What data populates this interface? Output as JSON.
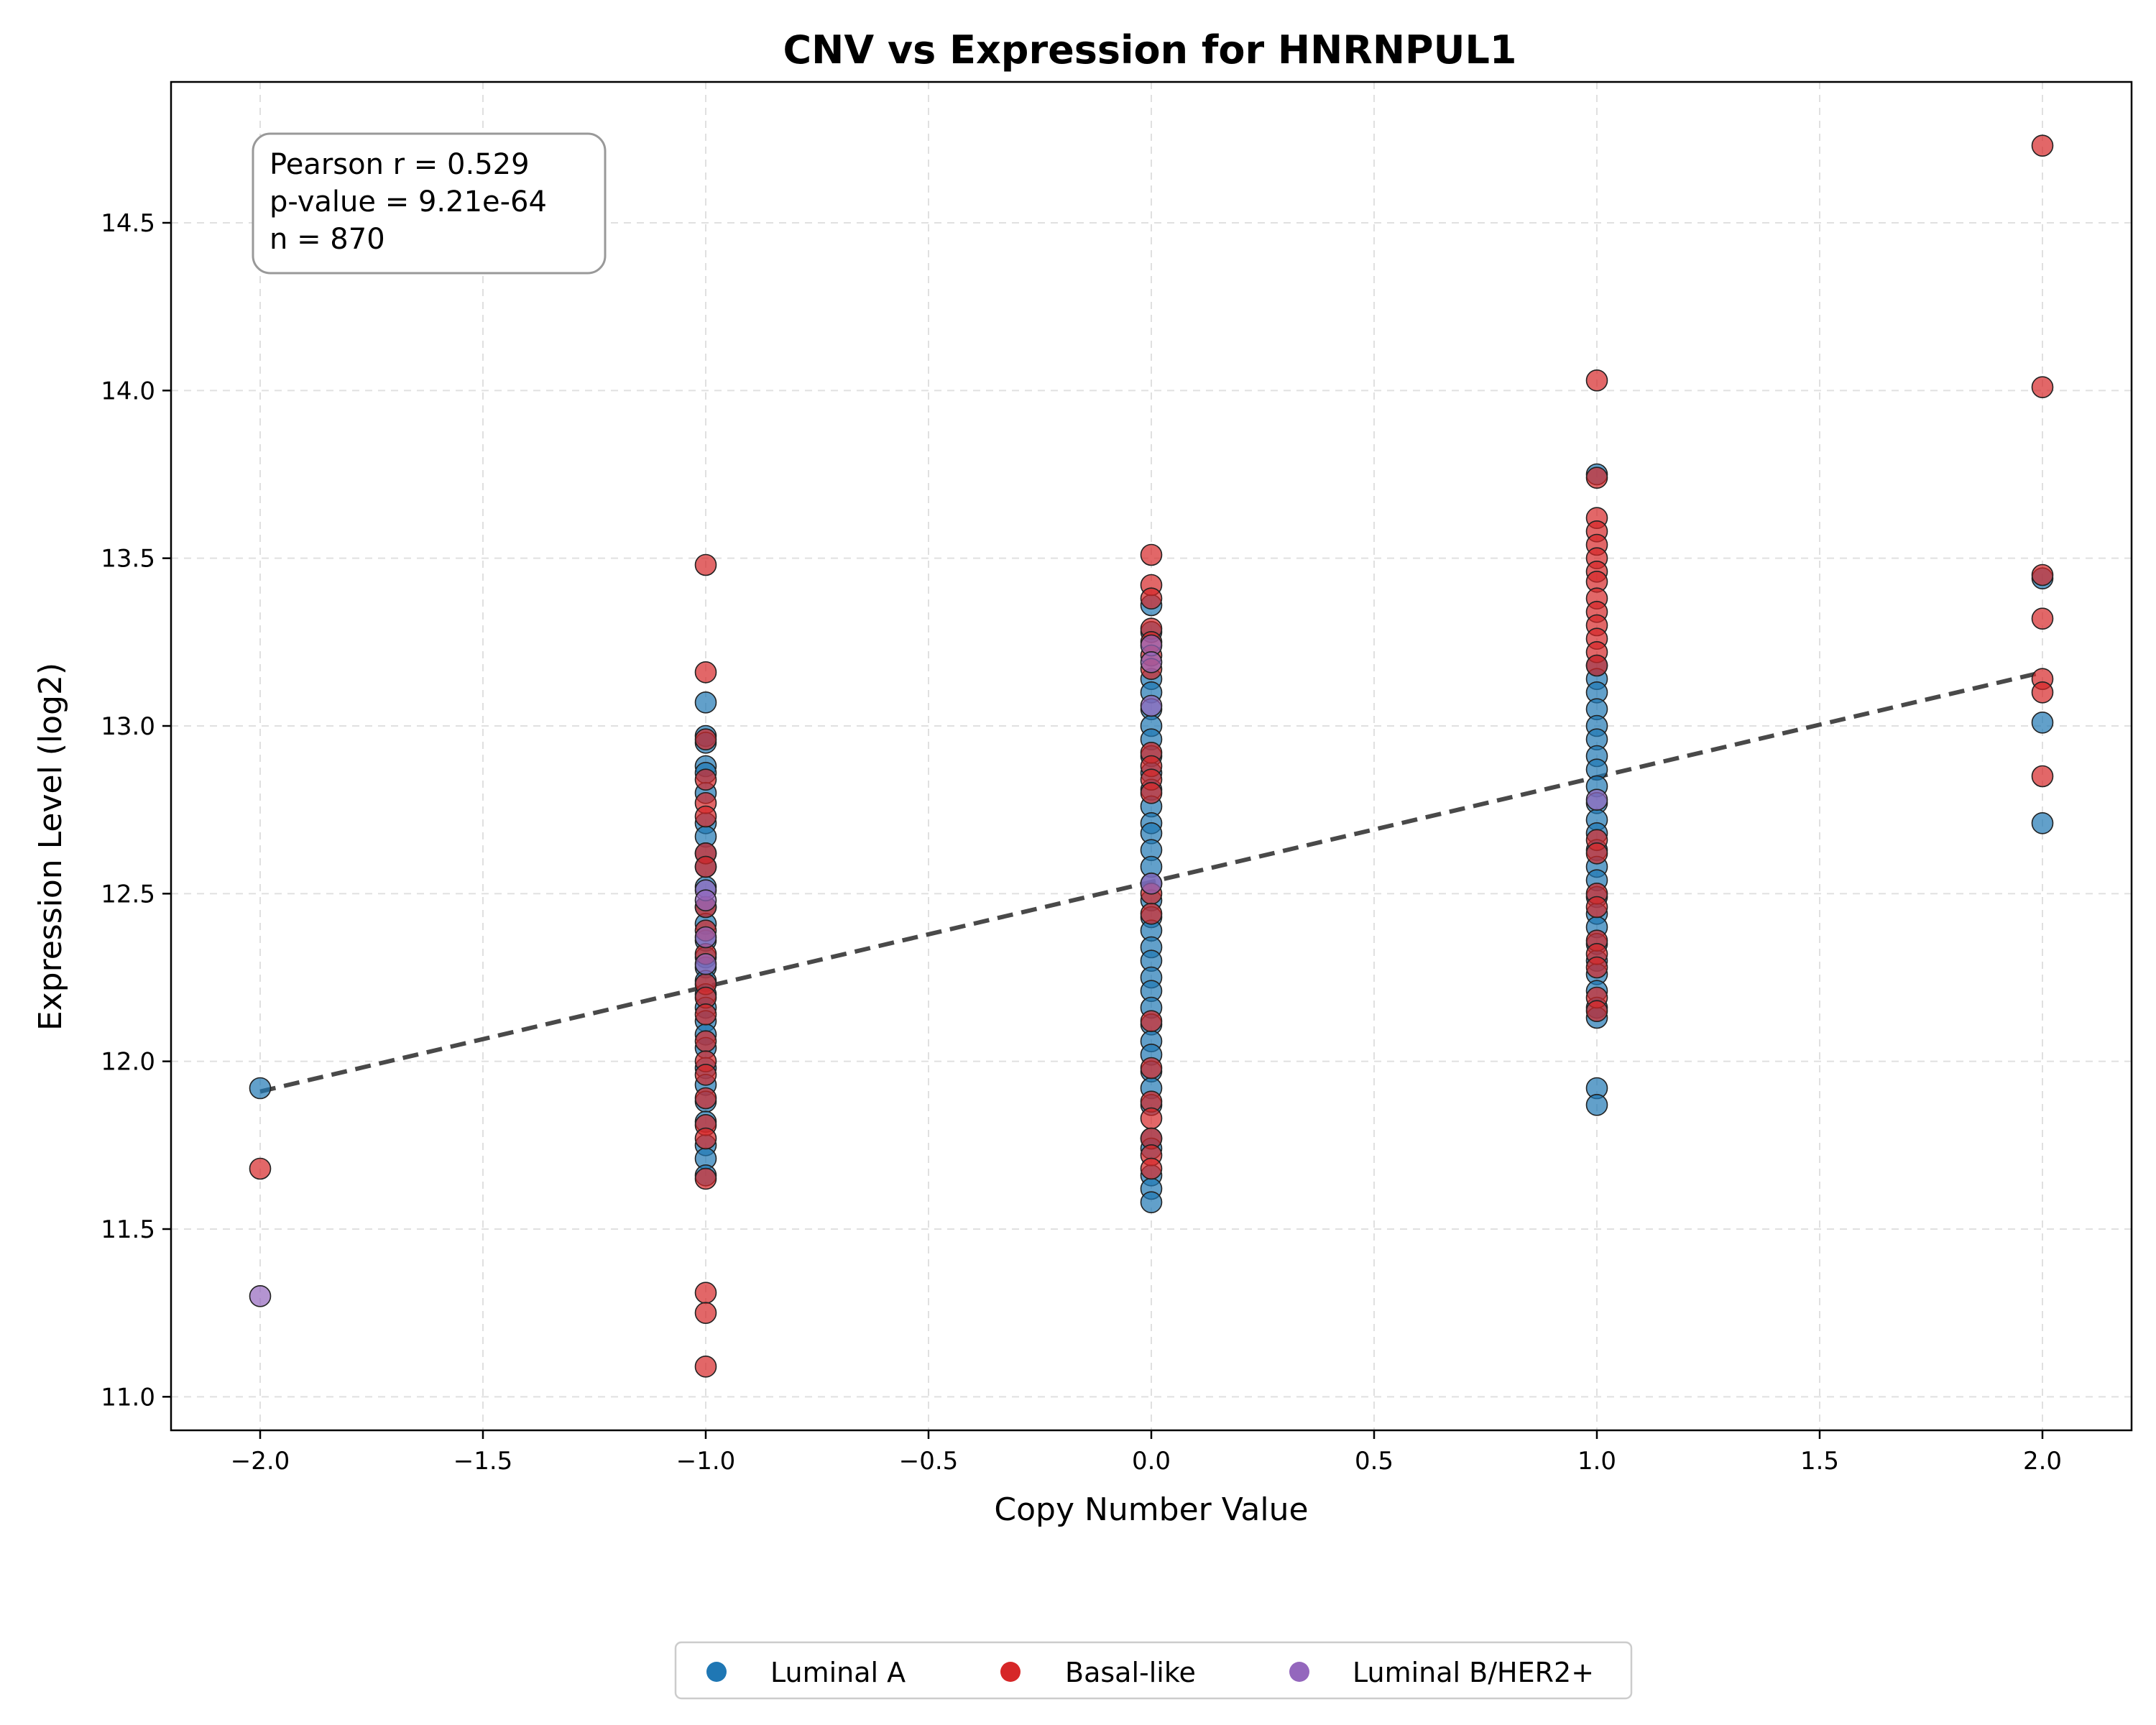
{
  "chart_data": {
    "type": "scatter",
    "title": "CNV vs Expression for HNRNPUL1",
    "xlabel": "Copy Number Value",
    "ylabel": "Expression Level (log2)",
    "xlim": [
      -2.2,
      2.2
    ],
    "ylim": [
      10.9,
      14.92
    ],
    "x_ticks": [
      -2.0,
      -1.5,
      -1.0,
      -0.5,
      0.0,
      0.5,
      1.0,
      1.5,
      2.0
    ],
    "x_tick_labels": [
      "−2.0",
      "−1.5",
      "−1.0",
      "−0.5",
      "0.0",
      "0.5",
      "1.0",
      "1.5",
      "2.0"
    ],
    "y_ticks": [
      11.0,
      11.5,
      12.0,
      12.5,
      13.0,
      13.5,
      14.0,
      14.5
    ],
    "y_tick_labels": [
      "11.0",
      "11.5",
      "12.0",
      "12.5",
      "13.0",
      "13.5",
      "14.0",
      "14.5"
    ],
    "grid": true,
    "legend_position": "bottom-center",
    "stats": {
      "line1": "Pearson r = 0.529",
      "line2": "p-value = 9.21e-64",
      "line3": "n = 870"
    },
    "trendline": {
      "x": [
        -2.0,
        2.0
      ],
      "y": [
        11.91,
        13.16
      ],
      "color": "#404040"
    },
    "series": [
      {
        "name": "Luminal A",
        "color": "#1f77b4",
        "points": [
          [
            -2,
            11.92
          ],
          [
            -1,
            13.07
          ],
          [
            -1,
            12.97
          ],
          [
            -1,
            12.95
          ],
          [
            -1,
            12.88
          ],
          [
            -1,
            12.86
          ],
          [
            -1,
            12.8
          ],
          [
            -1,
            12.71
          ],
          [
            -1,
            12.67
          ],
          [
            -1,
            12.62
          ],
          [
            -1,
            12.58
          ],
          [
            -1,
            12.52
          ],
          [
            -1,
            12.46
          ],
          [
            -1,
            12.41
          ],
          [
            -1,
            12.36
          ],
          [
            -1,
            12.31
          ],
          [
            -1,
            12.28
          ],
          [
            -1,
            12.24
          ],
          [
            -1,
            12.2
          ],
          [
            -1,
            12.16
          ],
          [
            -1,
            12.12
          ],
          [
            -1,
            12.08
          ],
          [
            -1,
            12.04
          ],
          [
            -1,
            11.98
          ],
          [
            -1,
            11.93
          ],
          [
            -1,
            11.88
          ],
          [
            -1,
            11.82
          ],
          [
            -1,
            11.75
          ],
          [
            -1,
            11.71
          ],
          [
            -1,
            11.66
          ],
          [
            0,
            13.36
          ],
          [
            0,
            13.28
          ],
          [
            0,
            13.14
          ],
          [
            0,
            13.1
          ],
          [
            0,
            13.05
          ],
          [
            0,
            13.0
          ],
          [
            0,
            12.96
          ],
          [
            0,
            12.91
          ],
          [
            0,
            12.86
          ],
          [
            0,
            12.81
          ],
          [
            0,
            12.76
          ],
          [
            0,
            12.71
          ],
          [
            0,
            12.68
          ],
          [
            0,
            12.63
          ],
          [
            0,
            12.58
          ],
          [
            0,
            12.53
          ],
          [
            0,
            12.48
          ],
          [
            0,
            12.43
          ],
          [
            0,
            12.39
          ],
          [
            0,
            12.34
          ],
          [
            0,
            12.3
          ],
          [
            0,
            12.25
          ],
          [
            0,
            12.21
          ],
          [
            0,
            12.16
          ],
          [
            0,
            12.11
          ],
          [
            0,
            12.06
          ],
          [
            0,
            12.02
          ],
          [
            0,
            11.97
          ],
          [
            0,
            11.92
          ],
          [
            0,
            11.87
          ],
          [
            0,
            11.77
          ],
          [
            0,
            11.74
          ],
          [
            0,
            11.66
          ],
          [
            0,
            11.62
          ],
          [
            0,
            11.58
          ],
          [
            1,
            13.75
          ],
          [
            1,
            13.18
          ],
          [
            1,
            13.14
          ],
          [
            1,
            13.1
          ],
          [
            1,
            13.05
          ],
          [
            1,
            13.0
          ],
          [
            1,
            12.96
          ],
          [
            1,
            12.91
          ],
          [
            1,
            12.87
          ],
          [
            1,
            12.82
          ],
          [
            1,
            12.77
          ],
          [
            1,
            12.72
          ],
          [
            1,
            12.68
          ],
          [
            1,
            12.63
          ],
          [
            1,
            12.58
          ],
          [
            1,
            12.54
          ],
          [
            1,
            12.49
          ],
          [
            1,
            12.44
          ],
          [
            1,
            12.4
          ],
          [
            1,
            12.35
          ],
          [
            1,
            12.3
          ],
          [
            1,
            12.26
          ],
          [
            1,
            12.21
          ],
          [
            1,
            12.16
          ],
          [
            1,
            12.13
          ],
          [
            1,
            11.92
          ],
          [
            1,
            11.87
          ],
          [
            2,
            13.44
          ],
          [
            2,
            13.01
          ],
          [
            2,
            12.71
          ]
        ]
      },
      {
        "name": "Basal-like",
        "color": "#d62728",
        "points": [
          [
            -2,
            11.68
          ],
          [
            -1,
            13.48
          ],
          [
            -1,
            13.16
          ],
          [
            -1,
            12.96
          ],
          [
            -1,
            12.84
          ],
          [
            -1,
            12.77
          ],
          [
            -1,
            12.73
          ],
          [
            -1,
            12.62
          ],
          [
            -1,
            12.58
          ],
          [
            -1,
            12.46
          ],
          [
            -1,
            12.39
          ],
          [
            -1,
            12.32
          ],
          [
            -1,
            12.23
          ],
          [
            -1,
            12.19
          ],
          [
            -1,
            12.14
          ],
          [
            -1,
            12.06
          ],
          [
            -1,
            12.0
          ],
          [
            -1,
            11.96
          ],
          [
            -1,
            11.89
          ],
          [
            -1,
            11.81
          ],
          [
            -1,
            11.77
          ],
          [
            -1,
            11.65
          ],
          [
            -1,
            11.31
          ],
          [
            -1,
            11.25
          ],
          [
            -1,
            11.09
          ],
          [
            0,
            13.51
          ],
          [
            0,
            13.42
          ],
          [
            0,
            13.38
          ],
          [
            0,
            13.29
          ],
          [
            0,
            13.25
          ],
          [
            0,
            13.21
          ],
          [
            0,
            13.17
          ],
          [
            0,
            12.92
          ],
          [
            0,
            12.88
          ],
          [
            0,
            12.84
          ],
          [
            0,
            12.8
          ],
          [
            0,
            12.5
          ],
          [
            0,
            12.44
          ],
          [
            0,
            12.12
          ],
          [
            0,
            11.98
          ],
          [
            0,
            11.88
          ],
          [
            0,
            11.83
          ],
          [
            0,
            11.77
          ],
          [
            0,
            11.72
          ],
          [
            0,
            11.68
          ],
          [
            1,
            14.03
          ],
          [
            1,
            13.74
          ],
          [
            1,
            13.62
          ],
          [
            1,
            13.58
          ],
          [
            1,
            13.54
          ],
          [
            1,
            13.5
          ],
          [
            1,
            13.46
          ],
          [
            1,
            13.43
          ],
          [
            1,
            13.38
          ],
          [
            1,
            13.34
          ],
          [
            1,
            13.3
          ],
          [
            1,
            13.26
          ],
          [
            1,
            13.22
          ],
          [
            1,
            13.18
          ],
          [
            1,
            12.66
          ],
          [
            1,
            12.62
          ],
          [
            1,
            12.5
          ],
          [
            1,
            12.46
          ],
          [
            1,
            12.36
          ],
          [
            1,
            12.32
          ],
          [
            1,
            12.28
          ],
          [
            1,
            12.19
          ],
          [
            1,
            12.15
          ],
          [
            2,
            14.73
          ],
          [
            2,
            14.01
          ],
          [
            2,
            13.45
          ],
          [
            2,
            13.32
          ],
          [
            2,
            13.14
          ],
          [
            2,
            13.1
          ],
          [
            2,
            12.85
          ]
        ]
      },
      {
        "name": "Luminal B/HER2+",
        "color": "#9467bd",
        "points": [
          [
            -2,
            11.3
          ],
          [
            -1,
            12.51
          ],
          [
            -1,
            12.48
          ],
          [
            -1,
            12.37
          ],
          [
            -1,
            12.29
          ],
          [
            0,
            13.24
          ],
          [
            0,
            13.19
          ],
          [
            0,
            13.06
          ],
          [
            0,
            12.53
          ],
          [
            1,
            12.78
          ]
        ]
      }
    ]
  }
}
